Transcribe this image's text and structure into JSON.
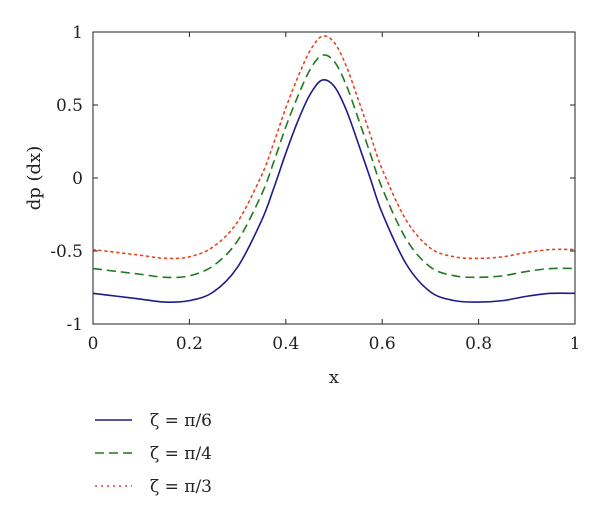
{
  "chart_data": {
    "type": "line",
    "title": "",
    "xlabel": "x",
    "ylabel": "dp (dx)",
    "xlim": [
      0,
      1
    ],
    "ylim": [
      -1,
      1
    ],
    "xticks": [
      0,
      0.2,
      0.4,
      0.6,
      0.8,
      1
    ],
    "xtick_labels": [
      "0",
      "0.2",
      "0.4",
      "0.6",
      "0.8",
      "1"
    ],
    "yticks": [
      -1,
      -0.5,
      0,
      0.5,
      1
    ],
    "ytick_labels": [
      "-1",
      "-0.5",
      "0",
      "0.5",
      "1"
    ],
    "grid": false,
    "legend_position": "below",
    "series": [
      {
        "name": "ζ = π/6",
        "color": "#1f1a8a",
        "style": "solid",
        "x": [
          0,
          0.05,
          0.1,
          0.15,
          0.2,
          0.25,
          0.3,
          0.35,
          0.375,
          0.4,
          0.425,
          0.45,
          0.475,
          0.5,
          0.525,
          0.55,
          0.575,
          0.6,
          0.65,
          0.7,
          0.75,
          0.8,
          0.85,
          0.9,
          0.95,
          1
        ],
        "y": [
          -0.79,
          -0.81,
          -0.83,
          -0.85,
          -0.84,
          -0.78,
          -0.61,
          -0.29,
          -0.07,
          0.17,
          0.39,
          0.57,
          0.67,
          0.63,
          0.47,
          0.24,
          0.0,
          -0.24,
          -0.59,
          -0.78,
          -0.84,
          -0.85,
          -0.84,
          -0.81,
          -0.79,
          -0.79
        ]
      },
      {
        "name": "ζ = π/4",
        "color": "#1f7a1f",
        "style": "dashed",
        "x": [
          0,
          0.05,
          0.1,
          0.15,
          0.2,
          0.25,
          0.3,
          0.35,
          0.375,
          0.4,
          0.425,
          0.45,
          0.475,
          0.5,
          0.525,
          0.55,
          0.575,
          0.6,
          0.65,
          0.7,
          0.75,
          0.8,
          0.85,
          0.9,
          0.95,
          1
        ],
        "y": [
          -0.62,
          -0.64,
          -0.66,
          -0.68,
          -0.67,
          -0.6,
          -0.43,
          -0.11,
          0.11,
          0.35,
          0.56,
          0.74,
          0.84,
          0.8,
          0.64,
          0.41,
          0.17,
          -0.07,
          -0.42,
          -0.61,
          -0.67,
          -0.68,
          -0.67,
          -0.64,
          -0.62,
          -0.62
        ]
      },
      {
        "name": "ζ = π/3",
        "color": "#e8431f",
        "style": "dotted",
        "x": [
          0,
          0.05,
          0.1,
          0.15,
          0.2,
          0.25,
          0.3,
          0.35,
          0.375,
          0.4,
          0.425,
          0.45,
          0.475,
          0.5,
          0.525,
          0.55,
          0.575,
          0.6,
          0.65,
          0.7,
          0.75,
          0.8,
          0.85,
          0.9,
          0.95,
          1
        ],
        "y": [
          -0.49,
          -0.51,
          -0.53,
          -0.55,
          -0.54,
          -0.47,
          -0.3,
          0.02,
          0.24,
          0.48,
          0.69,
          0.87,
          0.97,
          0.93,
          0.77,
          0.54,
          0.3,
          0.06,
          -0.29,
          -0.48,
          -0.54,
          -0.55,
          -0.54,
          -0.51,
          -0.49,
          -0.49
        ]
      }
    ]
  }
}
